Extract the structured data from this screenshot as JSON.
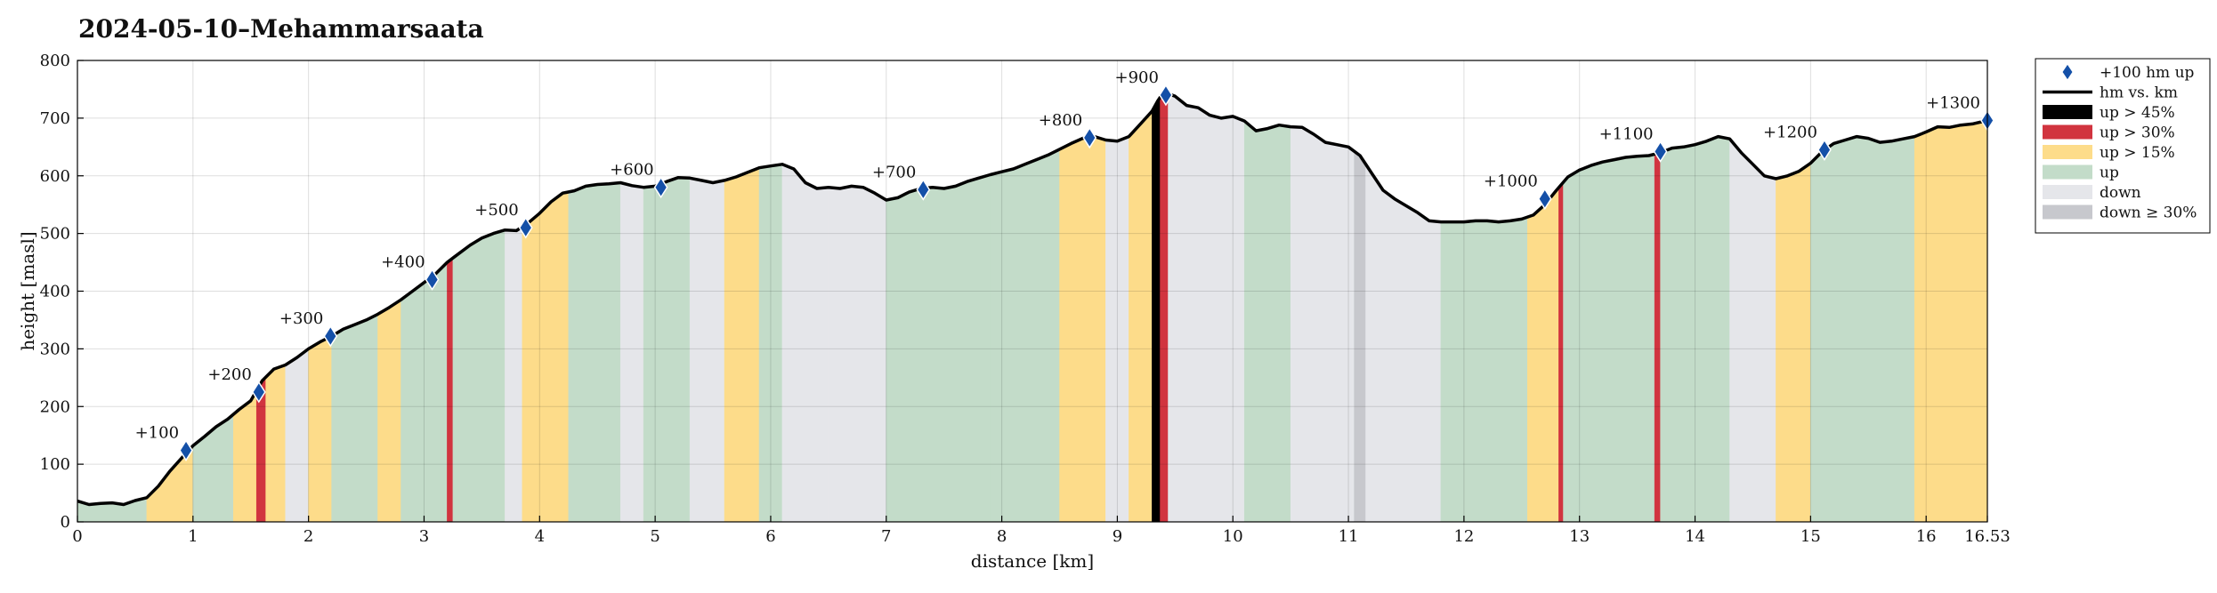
{
  "chart_data": {
    "type": "area",
    "title": "2024-05-10–Mehammarsaata",
    "xlabel": "distance [km]",
    "ylabel": "height [masl]",
    "xlim": [
      0,
      16.53
    ],
    "ylim": [
      0,
      800
    ],
    "xticks": [
      0,
      1,
      2,
      3,
      4,
      5,
      6,
      7,
      8,
      9,
      10,
      11,
      12,
      13,
      14,
      15,
      16,
      16.53
    ],
    "xtick_labels": [
      "0",
      "1",
      "2",
      "3",
      "4",
      "5",
      "6",
      "7",
      "8",
      "9",
      "10",
      "11",
      "12",
      "13",
      "14",
      "15",
      "16",
      "16.53"
    ],
    "yticks": [
      0,
      100,
      200,
      300,
      400,
      500,
      600,
      700,
      800
    ],
    "grid": true,
    "legend_position": "outside-top-right",
    "colors": {
      "line": "#000000",
      "up_gt_45": "#000000",
      "up_gt_30": "#d1343f",
      "up_gt_15": "#fddc8a",
      "up": "#c3dcc9",
      "down": "#e5e6ea",
      "down_ge_30": "#c7c8cd",
      "marker": "#1450a8"
    },
    "legend": [
      {
        "key": "marker",
        "label": "+100 hm up"
      },
      {
        "key": "line",
        "label": "hm vs. km"
      },
      {
        "key": "up_gt_45",
        "label": "up > 45%"
      },
      {
        "key": "up_gt_30",
        "label": "up > 30%"
      },
      {
        "key": "up_gt_15",
        "label": "up > 15%"
      },
      {
        "key": "up",
        "label": "up"
      },
      {
        "key": "down",
        "label": "down"
      },
      {
        "key": "down_ge_30",
        "label": "down ≥ 30%"
      }
    ],
    "profile": {
      "x": [
        0,
        0.1,
        0.2,
        0.3,
        0.4,
        0.5,
        0.6,
        0.7,
        0.8,
        0.9,
        1.0,
        1.1,
        1.2,
        1.3,
        1.4,
        1.5,
        1.6,
        1.7,
        1.8,
        1.9,
        2.0,
        2.1,
        2.2,
        2.3,
        2.4,
        2.5,
        2.6,
        2.7,
        2.8,
        2.9,
        3.0,
        3.1,
        3.2,
        3.3,
        3.4,
        3.5,
        3.6,
        3.7,
        3.8,
        3.9,
        4.0,
        4.1,
        4.2,
        4.3,
        4.4,
        4.5,
        4.6,
        4.7,
        4.8,
        4.9,
        5.0,
        5.1,
        5.2,
        5.3,
        5.4,
        5.5,
        5.6,
        5.7,
        5.8,
        5.9,
        6.0,
        6.1,
        6.2,
        6.3,
        6.4,
        6.5,
        6.6,
        6.7,
        6.8,
        6.9,
        7.0,
        7.1,
        7.2,
        7.3,
        7.4,
        7.5,
        7.6,
        7.7,
        7.8,
        7.9,
        8.0,
        8.1,
        8.2,
        8.3,
        8.4,
        8.5,
        8.6,
        8.7,
        8.8,
        8.9,
        9.0,
        9.1,
        9.2,
        9.3,
        9.35,
        9.4,
        9.5,
        9.6,
        9.7,
        9.8,
        9.9,
        10.0,
        10.1,
        10.2,
        10.3,
        10.4,
        10.5,
        10.6,
        10.7,
        10.8,
        10.9,
        11.0,
        11.1,
        11.2,
        11.3,
        11.4,
        11.5,
        11.6,
        11.7,
        11.8,
        11.9,
        12.0,
        12.1,
        12.2,
        12.3,
        12.4,
        12.5,
        12.6,
        12.7,
        12.8,
        12.9,
        13.0,
        13.1,
        13.2,
        13.3,
        13.4,
        13.5,
        13.6,
        13.7,
        13.8,
        13.9,
        14.0,
        14.1,
        14.2,
        14.3,
        14.4,
        14.5,
        14.6,
        14.7,
        14.8,
        14.9,
        15.0,
        15.1,
        15.2,
        15.3,
        15.4,
        15.5,
        15.6,
        15.7,
        15.8,
        15.9,
        16.0,
        16.1,
        16.2,
        16.3,
        16.4,
        16.53
      ],
      "y": [
        36,
        30,
        32,
        33,
        30,
        37,
        42,
        62,
        88,
        110,
        132,
        148,
        165,
        178,
        195,
        210,
        245,
        265,
        272,
        285,
        300,
        312,
        322,
        334,
        342,
        350,
        360,
        372,
        385,
        400,
        415,
        430,
        450,
        465,
        480,
        492,
        500,
        506,
        505,
        518,
        535,
        555,
        570,
        574,
        582,
        585,
        586,
        588,
        583,
        580,
        582,
        590,
        597,
        596,
        592,
        588,
        592,
        598,
        606,
        614,
        617,
        620,
        612,
        588,
        578,
        580,
        578,
        582,
        580,
        570,
        558,
        562,
        572,
        578,
        580,
        578,
        582,
        590,
        596,
        602,
        607,
        612,
        620,
        628,
        636,
        646,
        656,
        665,
        668,
        662,
        660,
        668,
        690,
        712,
        730,
        745,
        738,
        722,
        718,
        705,
        700,
        703,
        695,
        678,
        682,
        688,
        685,
        684,
        672,
        658,
        654,
        650,
        635,
        605,
        575,
        560,
        548,
        536,
        522,
        520,
        520,
        520,
        522,
        522,
        520,
        522,
        525,
        532,
        550,
        575,
        598,
        610,
        618,
        624,
        628,
        632,
        634,
        635,
        640,
        648,
        650,
        654,
        660,
        668,
        664,
        640,
        620,
        600,
        595,
        600,
        608,
        622,
        642,
        656,
        662,
        668,
        665,
        658,
        660,
        664,
        668,
        676,
        685,
        684,
        688,
        690,
        696
      ]
    },
    "markers": [
      {
        "x": 0.94,
        "y": 124,
        "label": "+100"
      },
      {
        "x": 1.57,
        "y": 225,
        "label": "+200"
      },
      {
        "x": 2.19,
        "y": 322,
        "label": "+300"
      },
      {
        "x": 3.07,
        "y": 420,
        "label": "+400"
      },
      {
        "x": 3.88,
        "y": 510,
        "label": "+500"
      },
      {
        "x": 5.05,
        "y": 580,
        "label": "+600"
      },
      {
        "x": 7.32,
        "y": 576,
        "label": "+700"
      },
      {
        "x": 8.76,
        "y": 666,
        "label": "+800"
      },
      {
        "x": 9.42,
        "y": 740,
        "label": "+900"
      },
      {
        "x": 12.7,
        "y": 560,
        "label": "+1000"
      },
      {
        "x": 13.7,
        "y": 642,
        "label": "+1100"
      },
      {
        "x": 15.12,
        "y": 645,
        "label": "+1200"
      },
      {
        "x": 16.53,
        "y": 696,
        "label": "+1300"
      }
    ],
    "segments": [
      {
        "x0": 0.0,
        "x1": 0.6,
        "class": "up"
      },
      {
        "x0": 0.6,
        "x1": 1.0,
        "class": "up_gt_15"
      },
      {
        "x0": 1.0,
        "x1": 1.35,
        "class": "up"
      },
      {
        "x0": 1.35,
        "x1": 1.55,
        "class": "up_gt_15"
      },
      {
        "x0": 1.55,
        "x1": 1.63,
        "class": "up_gt_30"
      },
      {
        "x0": 1.63,
        "x1": 1.8,
        "class": "up_gt_15"
      },
      {
        "x0": 1.8,
        "x1": 2.0,
        "class": "down"
      },
      {
        "x0": 2.0,
        "x1": 2.2,
        "class": "up_gt_15"
      },
      {
        "x0": 2.2,
        "x1": 2.6,
        "class": "up"
      },
      {
        "x0": 2.6,
        "x1": 2.8,
        "class": "up_gt_15"
      },
      {
        "x0": 2.8,
        "x1": 3.2,
        "class": "up"
      },
      {
        "x0": 3.2,
        "x1": 3.25,
        "class": "up_gt_30"
      },
      {
        "x0": 3.25,
        "x1": 3.7,
        "class": "up"
      },
      {
        "x0": 3.7,
        "x1": 3.85,
        "class": "down"
      },
      {
        "x0": 3.85,
        "x1": 4.25,
        "class": "up_gt_15"
      },
      {
        "x0": 4.25,
        "x1": 4.7,
        "class": "up"
      },
      {
        "x0": 4.7,
        "x1": 4.9,
        "class": "down"
      },
      {
        "x0": 4.9,
        "x1": 5.3,
        "class": "up"
      },
      {
        "x0": 5.3,
        "x1": 5.6,
        "class": "down"
      },
      {
        "x0": 5.6,
        "x1": 5.9,
        "class": "up_gt_15"
      },
      {
        "x0": 5.9,
        "x1": 6.1,
        "class": "up"
      },
      {
        "x0": 6.1,
        "x1": 6.5,
        "class": "down"
      },
      {
        "x0": 6.5,
        "x1": 7.0,
        "class": "down"
      },
      {
        "x0": 7.0,
        "x1": 7.9,
        "class": "up"
      },
      {
        "x0": 7.9,
        "x1": 8.5,
        "class": "up"
      },
      {
        "x0": 8.5,
        "x1": 8.9,
        "class": "up_gt_15"
      },
      {
        "x0": 8.9,
        "x1": 9.1,
        "class": "down"
      },
      {
        "x0": 9.1,
        "x1": 9.3,
        "class": "up_gt_15"
      },
      {
        "x0": 9.3,
        "x1": 9.37,
        "class": "up_gt_45"
      },
      {
        "x0": 9.37,
        "x1": 9.44,
        "class": "up_gt_30"
      },
      {
        "x0": 9.44,
        "x1": 10.1,
        "class": "down"
      },
      {
        "x0": 10.1,
        "x1": 10.5,
        "class": "up"
      },
      {
        "x0": 10.5,
        "x1": 11.05,
        "class": "down"
      },
      {
        "x0": 11.05,
        "x1": 11.15,
        "class": "down_ge_30"
      },
      {
        "x0": 11.15,
        "x1": 11.8,
        "class": "down"
      },
      {
        "x0": 11.8,
        "x1": 12.55,
        "class": "up"
      },
      {
        "x0": 12.55,
        "x1": 12.82,
        "class": "up_gt_15"
      },
      {
        "x0": 12.82,
        "x1": 12.86,
        "class": "up_gt_30"
      },
      {
        "x0": 12.86,
        "x1": 13.65,
        "class": "up"
      },
      {
        "x0": 13.65,
        "x1": 13.7,
        "class": "up_gt_30"
      },
      {
        "x0": 13.7,
        "x1": 14.3,
        "class": "up"
      },
      {
        "x0": 14.3,
        "x1": 14.7,
        "class": "down"
      },
      {
        "x0": 14.7,
        "x1": 15.0,
        "class": "up_gt_15"
      },
      {
        "x0": 15.0,
        "x1": 15.4,
        "class": "up"
      },
      {
        "x0": 15.4,
        "x1": 15.9,
        "class": "up"
      },
      {
        "x0": 15.9,
        "x1": 16.2,
        "class": "up_gt_15"
      },
      {
        "x0": 16.2,
        "x1": 16.53,
        "class": "up_gt_15"
      }
    ]
  }
}
